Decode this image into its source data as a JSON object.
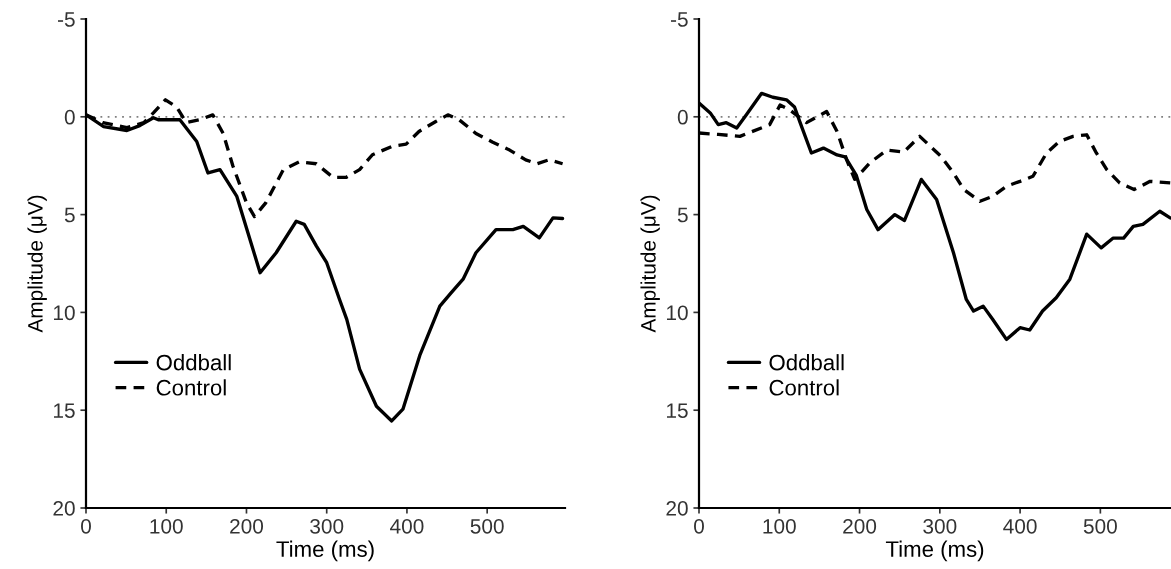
{
  "chart_data": [
    {
      "type": "line",
      "xlabel": "Time (ms)",
      "ylabel": "Amplitude (μV)",
      "xlim": [
        0,
        597
      ],
      "xticks": [
        0,
        100,
        200,
        300,
        400,
        500
      ],
      "ylim": [
        20,
        -5
      ],
      "yticks": [
        {
          "value": -5,
          "label": "-5"
        },
        0,
        5,
        10,
        15,
        20
      ],
      "legend": "bottom left",
      "grid": false,
      "ref_lines": [
        {
          "axis": "y",
          "value": 0,
          "color": "#808080",
          "line_style": "dotted"
        }
      ],
      "series": [
        {
          "name": "Oddball",
          "color": "#000000",
          "line_style": "solid",
          "x": [
            0,
            22,
            51,
            67,
            84,
            90,
            117,
            138,
            152,
            167,
            188,
            217,
            237,
            262,
            272,
            287,
            300,
            316,
            325,
            341,
            362,
            381,
            395,
            416,
            441,
            455,
            470,
            486,
            511,
            532,
            545,
            565,
            582,
            594
          ],
          "values": [
            -0.1,
            0.5,
            0.7,
            0.45,
            0.05,
            0.15,
            0.15,
            1.26,
            2.87,
            2.7,
            4.07,
            7.97,
            6.95,
            5.34,
            5.5,
            6.6,
            7.46,
            9.34,
            10.36,
            12.9,
            14.8,
            15.55,
            14.95,
            12.2,
            9.68,
            9.0,
            8.3,
            6.95,
            5.77,
            5.77,
            5.6,
            6.19,
            5.17,
            5.2
          ]
        },
        {
          "name": "Control",
          "color": "#000000",
          "line_style": "dashed",
          "x": [
            0,
            21,
            51,
            72,
            84,
            99,
            113,
            125,
            142,
            158,
            171,
            183,
            200,
            210,
            224,
            246,
            266,
            287,
            308,
            324,
            341,
            357,
            382,
            399,
            415,
            436,
            451,
            465,
            486,
            507,
            528,
            548,
            562,
            577,
            594
          ],
          "values": [
            -0.1,
            0.3,
            0.55,
            0.3,
            -0.2,
            -0.87,
            -0.5,
            0.3,
            0.15,
            -0.1,
            0.85,
            2.5,
            4.4,
            5.1,
            4.4,
            2.7,
            2.3,
            2.4,
            3.1,
            3.1,
            2.7,
            1.94,
            1.5,
            1.4,
            0.75,
            0.24,
            -0.1,
            0.15,
            0.85,
            1.3,
            1.7,
            2.2,
            2.4,
            2.2,
            2.4
          ]
        }
      ]
    },
    {
      "type": "line",
      "xlabel": "Time (ms)",
      "ylabel": "Amplitude (μV)",
      "xlim": [
        0,
        588
      ],
      "xticks": [
        0,
        100,
        200,
        300,
        400,
        500
      ],
      "ylim": [
        20,
        -5
      ],
      "yticks": [
        {
          "value": -5,
          "label": "-5"
        },
        0,
        5,
        10,
        15,
        20
      ],
      "legend": "bottom left",
      "grid": false,
      "ref_lines": [
        {
          "axis": "y",
          "value": 0,
          "color": "#808080",
          "line_style": "dotted"
        }
      ],
      "series": [
        {
          "name": "Oddball",
          "color": "#000000",
          "line_style": "solid",
          "x": [
            0,
            14,
            24,
            34,
            47,
            59,
            78,
            92,
            109,
            119,
            126,
            140,
            155,
            172,
            182,
            196,
            209,
            223,
            244,
            256,
            277,
            296,
            317,
            333,
            342,
            354,
            366,
            383,
            400,
            412,
            428,
            445,
            462,
            483,
            501,
            516,
            529,
            541,
            553,
            574,
            587
          ],
          "values": [
            -0.7,
            -0.2,
            0.4,
            0.3,
            0.57,
            -0.1,
            -1.2,
            -1.0,
            -0.87,
            -0.5,
            0.3,
            1.85,
            1.6,
            1.95,
            2.05,
            3.0,
            4.74,
            5.77,
            5.0,
            5.3,
            3.2,
            4.23,
            6.95,
            9.34,
            9.93,
            9.68,
            10.36,
            11.38,
            10.78,
            10.9,
            9.93,
            9.25,
            8.3,
            6.0,
            6.7,
            6.2,
            6.2,
            5.6,
            5.5,
            4.83,
            5.17
          ]
        },
        {
          "name": "Control",
          "color": "#000000",
          "line_style": "dashed",
          "x": [
            0,
            24,
            51,
            88,
            101,
            113,
            134,
            159,
            172,
            184,
            194,
            213,
            234,
            255,
            275,
            301,
            317,
            330,
            350,
            366,
            383,
            400,
            416,
            433,
            449,
            466,
            483,
            495,
            508,
            524,
            542,
            562,
            587
          ],
          "values": [
            0.83,
            0.9,
            1.0,
            0.4,
            -0.6,
            -0.35,
            0.3,
            -0.27,
            0.75,
            2.2,
            3.2,
            2.35,
            1.7,
            1.8,
            1.0,
            2.0,
            2.87,
            3.72,
            4.32,
            4.06,
            3.55,
            3.3,
            3.04,
            1.85,
            1.26,
            1.0,
            0.92,
            1.85,
            2.7,
            3.38,
            3.72,
            3.3,
            3.38
          ]
        }
      ]
    }
  ]
}
